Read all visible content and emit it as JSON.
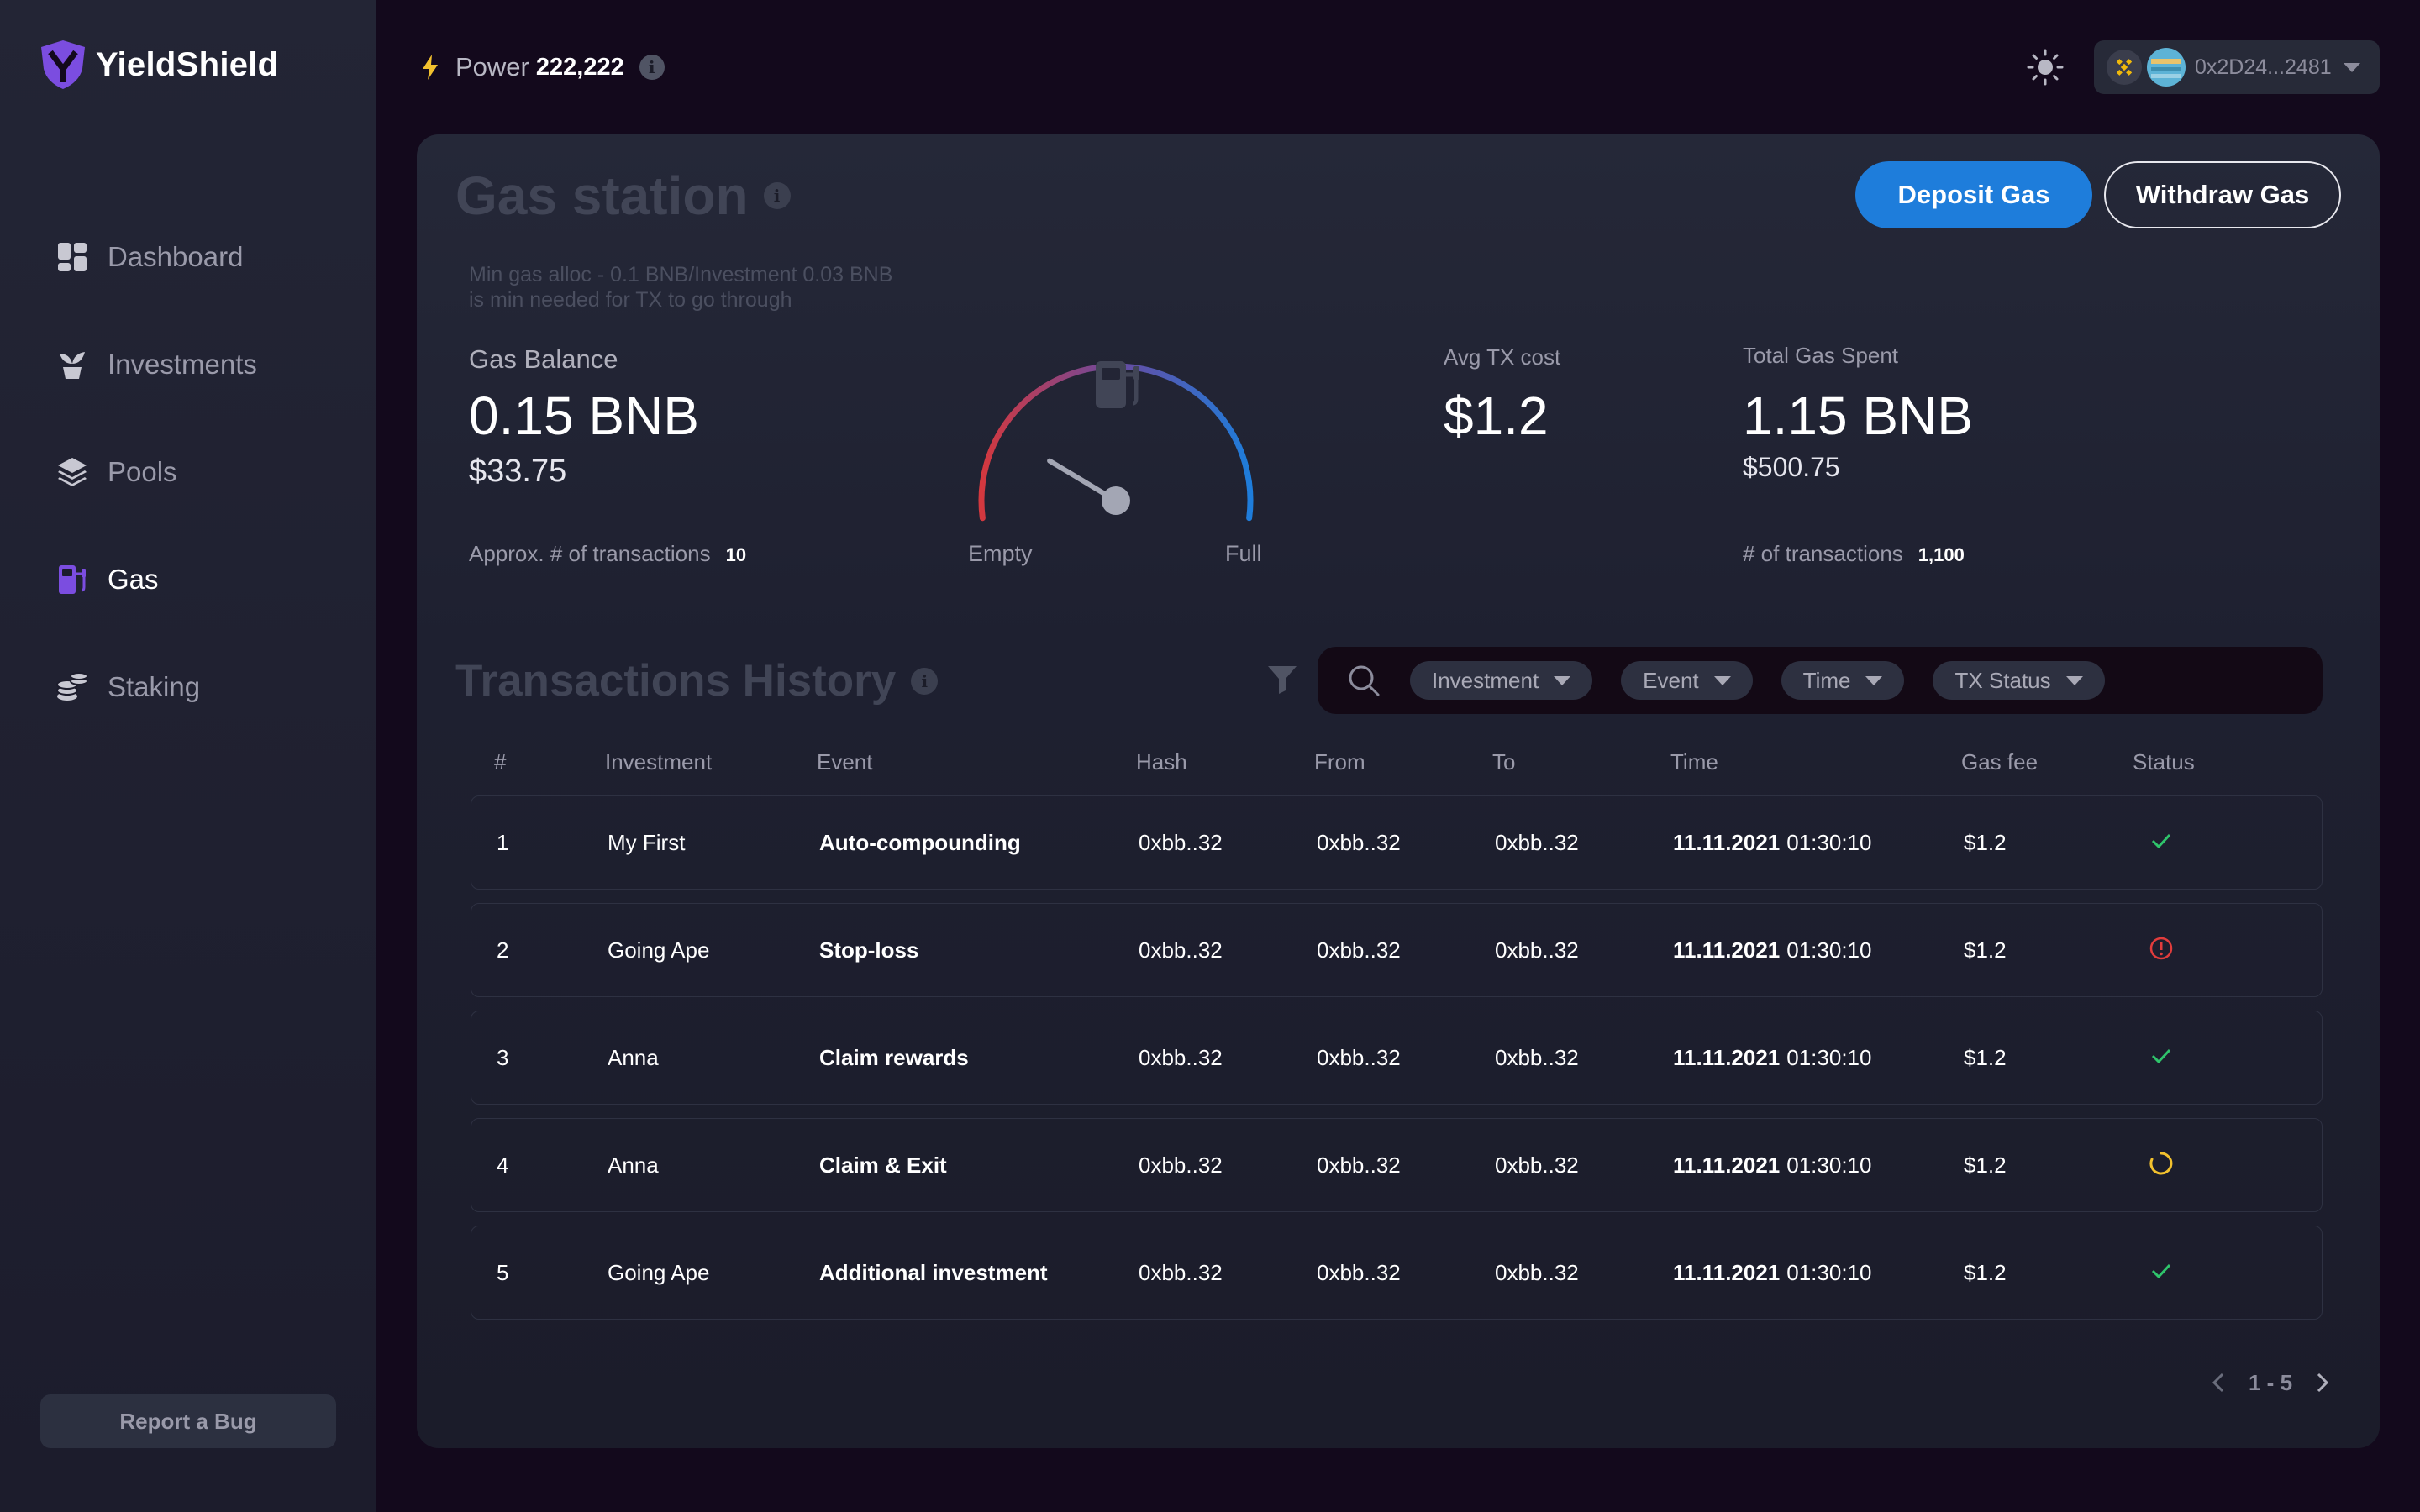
{
  "app": {
    "name": "YieldShield"
  },
  "sidebar": {
    "items": [
      {
        "label": "Dashboard",
        "icon": "dashboard-icon",
        "active": false
      },
      {
        "label": "Investments",
        "icon": "sprout-icon",
        "active": false
      },
      {
        "label": "Pools",
        "icon": "layers-icon",
        "active": false
      },
      {
        "label": "Gas",
        "icon": "fuel-pump-icon",
        "active": true
      },
      {
        "label": "Staking",
        "icon": "coins-icon",
        "active": false
      }
    ],
    "report_bug": "Report a Bug"
  },
  "topbar": {
    "power_label": "Power",
    "power_value": "222,222",
    "wallet_address": "0x2D24...2481"
  },
  "gas": {
    "title": "Gas station",
    "deposit_label": "Deposit Gas",
    "withdraw_label": "Withdraw Gas",
    "min_note_line1": "Min gas alloc - 0.1 BNB/Investment 0.03 BNB",
    "min_note_line2": "is min needed for TX to go through",
    "balance_label": "Gas Balance",
    "balance_bnb": "0.15 BNB",
    "balance_usd": "$33.75",
    "approx_label": "Approx. # of transactions",
    "approx_value": "10",
    "gauge_empty": "Empty",
    "gauge_full": "Full",
    "gauge_level": 0.15,
    "avg_label": "Avg TX cost",
    "avg_value": "$1.2",
    "total_label": "Total Gas Spent",
    "total_bnb": "1.15 BNB",
    "total_usd": "$500.75",
    "tx_count_label": "# of transactions",
    "tx_count_value": "1,100"
  },
  "history": {
    "title": "Transactions History",
    "filters": [
      "Investment",
      "Event",
      "Time",
      "TX Status"
    ],
    "columns": [
      "#",
      "Investment",
      "Event",
      "Hash",
      "From",
      "To",
      "Time",
      "Gas fee",
      "Status"
    ],
    "rows": [
      {
        "n": "1",
        "investment": "My First",
        "event": "Auto-compounding",
        "hash": "0xbb..32",
        "from": "0xbb..32",
        "to": "0xbb..32",
        "date": "11.11.2021",
        "time": "01:30:10",
        "fee": "$1.2",
        "status": "success"
      },
      {
        "n": "2",
        "investment": "Going Ape",
        "event": "Stop-loss",
        "hash": "0xbb..32",
        "from": "0xbb..32",
        "to": "0xbb..32",
        "date": "11.11.2021",
        "time": "01:30:10",
        "fee": "$1.2",
        "status": "error"
      },
      {
        "n": "3",
        "investment": "Anna",
        "event": "Claim rewards",
        "hash": "0xbb..32",
        "from": "0xbb..32",
        "to": "0xbb..32",
        "date": "11.11.2021",
        "time": "01:30:10",
        "fee": "$1.2",
        "status": "success"
      },
      {
        "n": "4",
        "investment": "Anna",
        "event": "Claim & Exit",
        "hash": "0xbb..32",
        "from": "0xbb..32",
        "to": "0xbb..32",
        "date": "11.11.2021",
        "time": "01:30:10",
        "fee": "$1.2",
        "status": "pending"
      },
      {
        "n": "5",
        "investment": "Going Ape",
        "event": "Additional investment",
        "hash": "0xbb..32",
        "from": "0xbb..32",
        "to": "0xbb..32",
        "date": "11.11.2021",
        "time": "01:30:10",
        "fee": "$1.2",
        "status": "success"
      }
    ],
    "pagination": "1 - 5"
  },
  "colors": {
    "accent": "#1e7ddb",
    "active_nav": "#7b4de0",
    "success": "#2fc46b",
    "error": "#e23c3c",
    "pending": "#f2c12e"
  }
}
